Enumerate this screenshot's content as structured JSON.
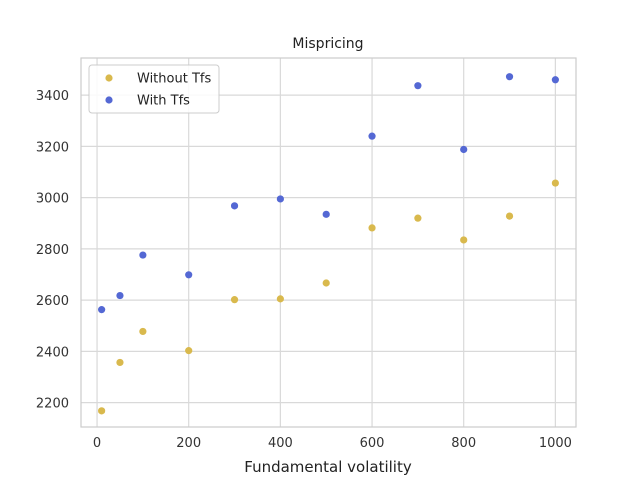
{
  "chart_data": {
    "type": "scatter",
    "title": "Mispricing",
    "xlabel": "Fundamental volatility",
    "ylabel": "",
    "xlim": [
      -35,
      1045
    ],
    "ylim": [
      2105,
      3545
    ],
    "xticks": [
      0,
      200,
      400,
      600,
      800,
      1000
    ],
    "yticks": [
      2200,
      2400,
      2600,
      2800,
      3000,
      3200,
      3400
    ],
    "grid": true,
    "legend_position": "top-left",
    "series": [
      {
        "name": "Without Tfs",
        "color": "#d9b94d",
        "x": [
          10,
          50,
          100,
          200,
          300,
          400,
          500,
          600,
          700,
          800,
          900,
          1000
        ],
        "y": [
          2168,
          2357,
          2478,
          2403,
          2602,
          2605,
          2667,
          2882,
          2920,
          2835,
          2928,
          3057
        ]
      },
      {
        "name": "With Tfs",
        "color": "#5468d4",
        "x": [
          10,
          50,
          100,
          200,
          300,
          400,
          500,
          600,
          700,
          800,
          900,
          1000
        ],
        "y": [
          2563,
          2618,
          2776,
          2699,
          2968,
          2995,
          2935,
          3240,
          3437,
          3188,
          3472,
          3460
        ]
      }
    ]
  }
}
